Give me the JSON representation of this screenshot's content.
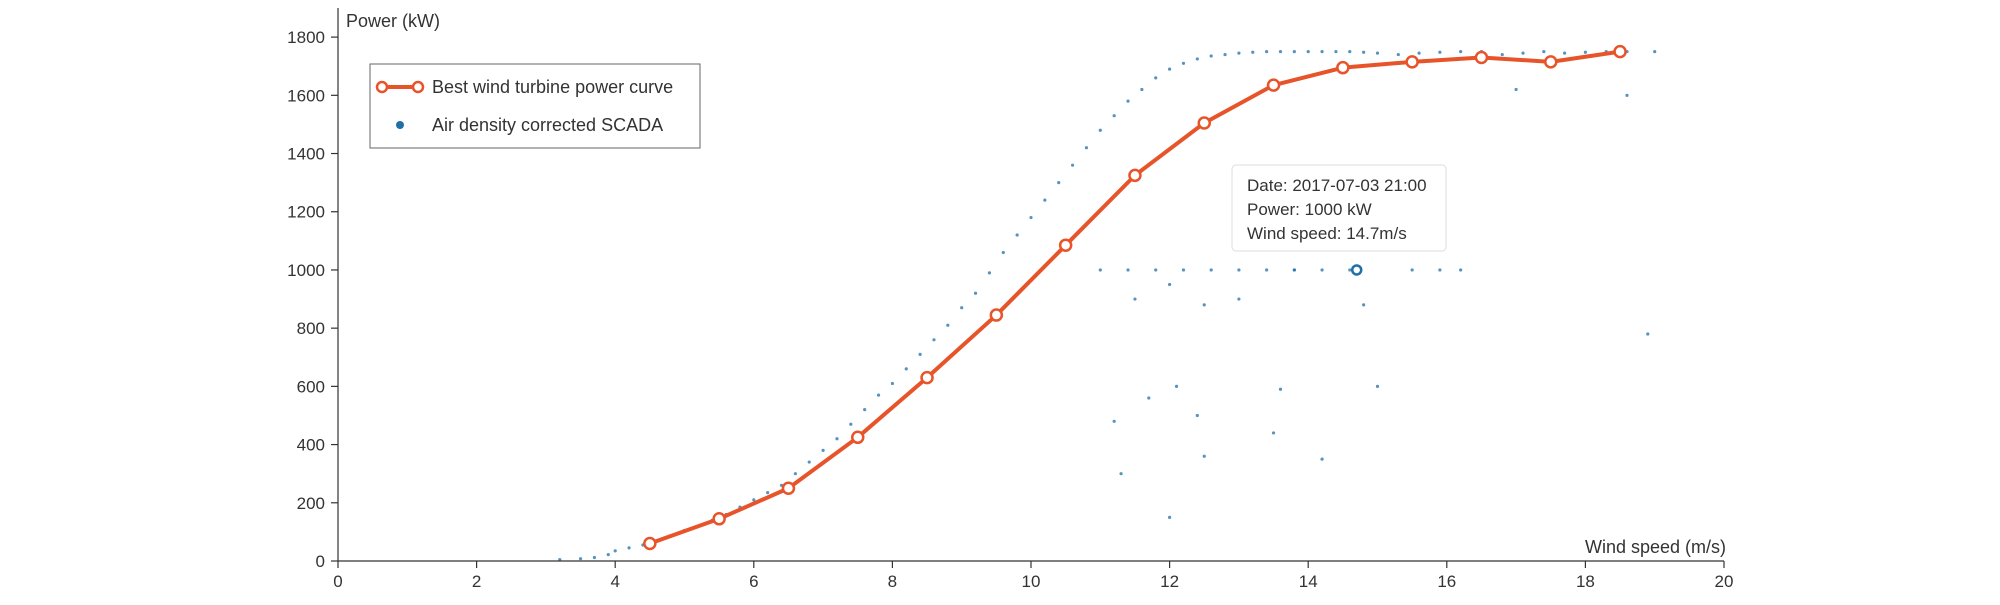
{
  "chart_data": {
    "type": "scatter",
    "xlabel": "Wind speed (m/s)",
    "ylabel": "Power (kW)",
    "xlim": [
      0,
      20
    ],
    "ylim": [
      0,
      1900
    ],
    "xticks": [
      0,
      2,
      4,
      6,
      8,
      10,
      12,
      14,
      16,
      18,
      20
    ],
    "yticks": [
      0,
      200,
      400,
      600,
      800,
      1000,
      1200,
      1400,
      1600,
      1800
    ],
    "grid": false,
    "legend_position": "top-left",
    "series": [
      {
        "name": "Best wind turbine power curve",
        "kind": "line",
        "color": "#e8542a",
        "x": [
          4.5,
          5.5,
          6.5,
          7.5,
          8.5,
          9.5,
          10.5,
          11.5,
          12.5,
          13.5,
          14.5,
          15.5,
          16.5,
          17.5,
          18.5
        ],
        "y": [
          60,
          145,
          250,
          425,
          630,
          845,
          1085,
          1325,
          1505,
          1635,
          1695,
          1715,
          1730,
          1715,
          1750
        ]
      },
      {
        "name": "Air density corrected SCADA",
        "kind": "scatter",
        "color": "#1f6fa8",
        "x": [
          3.2,
          3.5,
          3.7,
          3.9,
          4.0,
          4.2,
          4.4,
          4.6,
          4.8,
          5.0,
          5.2,
          5.4,
          5.6,
          5.8,
          6.0,
          6.2,
          6.4,
          6.6,
          6.8,
          7.0,
          7.2,
          7.4,
          7.6,
          7.8,
          8.0,
          8.2,
          8.4,
          8.6,
          8.8,
          9.0,
          9.2,
          9.4,
          9.6,
          9.8,
          10.0,
          10.2,
          10.4,
          10.6,
          10.8,
          11.0,
          11.2,
          11.4,
          11.6,
          11.8,
          12.0,
          12.2,
          12.4,
          12.6,
          12.8,
          13.0,
          13.2,
          13.4,
          13.6,
          13.8,
          14.0,
          14.2,
          14.4,
          14.6,
          14.8,
          15.0,
          15.3,
          15.6,
          15.9,
          16.2,
          16.5,
          16.8,
          17.1,
          17.4,
          17.7,
          18.0,
          18.3,
          18.6,
          19.0,
          11.0,
          11.4,
          11.8,
          12.2,
          12.6,
          13.0,
          13.4,
          13.8,
          14.2,
          14.6,
          15.5,
          15.9,
          16.2,
          11.5,
          12.0,
          12.5,
          13.0,
          13.8,
          14.8,
          11.2,
          12.1,
          12.5,
          13.6,
          15.0,
          11.7,
          12.4,
          13.5,
          14.2,
          11.3,
          12.0,
          17.0,
          18.6,
          18.9
        ],
        "y": [
          5,
          8,
          12,
          22,
          35,
          45,
          55,
          70,
          85,
          105,
          120,
          140,
          160,
          185,
          210,
          235,
          260,
          300,
          340,
          380,
          420,
          470,
          520,
          570,
          610,
          660,
          710,
          760,
          810,
          870,
          920,
          990,
          1060,
          1120,
          1180,
          1240,
          1300,
          1360,
          1420,
          1480,
          1530,
          1580,
          1620,
          1660,
          1690,
          1710,
          1725,
          1735,
          1740,
          1745,
          1748,
          1750,
          1750,
          1750,
          1750,
          1750,
          1750,
          1750,
          1748,
          1745,
          1740,
          1745,
          1748,
          1750,
          1750,
          1740,
          1745,
          1750,
          1745,
          1748,
          1750,
          1750,
          1750,
          1000,
          1000,
          1000,
          1000,
          1000,
          1000,
          1000,
          1000,
          1000,
          1000,
          1000,
          1000,
          1000,
          900,
          950,
          880,
          900,
          1000,
          880,
          480,
          600,
          360,
          590,
          600,
          560,
          500,
          440,
          350,
          300,
          150,
          1620,
          1600,
          780
        ]
      }
    ],
    "highlighted_point": {
      "x": 14.7,
      "y": 1000
    },
    "tooltip": {
      "date": "Date: 2017-07-03 21:00",
      "power": "Power: 1000 kW",
      "wind_speed": "Wind speed: 14.7m/s"
    },
    "colors": {
      "axis": "#333333",
      "curve": "#e8542a",
      "scada": "#1f6fa8"
    }
  }
}
